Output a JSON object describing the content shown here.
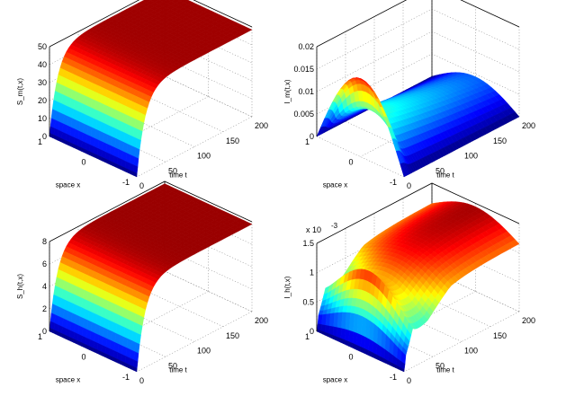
{
  "chart_data": [
    {
      "type": "surface",
      "zlabel": "S_m(t,x)",
      "xlabel": "space x",
      "ylabel": "time t",
      "x_ticks": [
        "-1",
        "0",
        "1"
      ],
      "t_ticks": [
        "0",
        "50",
        "100",
        "150",
        "200"
      ],
      "z_ticks": [
        "0",
        "10",
        "20",
        "30",
        "40",
        "50"
      ],
      "zlim": [
        0,
        50
      ],
      "tlim": [
        0,
        200
      ],
      "xlim": [
        -1,
        1
      ],
      "model": {
        "kind": "saturating",
        "plateau": 48.5,
        "rate": 0.07
      },
      "colormap": "jet"
    },
    {
      "type": "surface",
      "zlabel": "I_m(t,x)",
      "xlabel": "space x",
      "ylabel": "time t",
      "x_ticks": [
        "-1",
        "0",
        "1"
      ],
      "t_ticks": [
        "0",
        "50",
        "100",
        "150",
        "200"
      ],
      "z_ticks": [
        "0",
        "0.005",
        "0.01",
        "0.015",
        "0.02"
      ],
      "zlim": [
        0,
        0.02
      ],
      "tlim": [
        0,
        200
      ],
      "xlim": [
        -1,
        1
      ],
      "model": {
        "kind": "drop",
        "initial_peak": 0.0175,
        "final_peak": 0.0095,
        "switch_t": 10
      },
      "colormap": "jet"
    },
    {
      "type": "surface",
      "zlabel": "S_h(t,x)",
      "xlabel": "space x",
      "ylabel": "time t",
      "x_ticks": [
        "-1",
        "0",
        "1"
      ],
      "t_ticks": [
        "0",
        "50",
        "100",
        "150",
        "200"
      ],
      "z_ticks": [
        "0",
        "2",
        "4",
        "6",
        "8"
      ],
      "zlim": [
        0,
        8
      ],
      "tlim": [
        0,
        200
      ],
      "xlim": [
        -1,
        1
      ],
      "model": {
        "kind": "saturating",
        "plateau": 7.8,
        "rate": 0.07
      },
      "colormap": "jet"
    },
    {
      "type": "surface",
      "zlabel": "I_h(t,x)",
      "xlabel": "space x",
      "ylabel": "time t",
      "x_ticks": [
        "-1",
        "0",
        "1"
      ],
      "t_ticks": [
        "0",
        "50",
        "100",
        "150",
        "200"
      ],
      "z_ticks": [
        "0",
        "0.5",
        "1",
        "1.5"
      ],
      "z_multiplier": "x 10",
      "z_exponent": "-3",
      "zlim": [
        0,
        1.5
      ],
      "tlim": [
        0,
        200
      ],
      "xlim": [
        -1,
        1
      ],
      "model": {
        "kind": "bump",
        "initial_peak": 1.3,
        "dip": 1.05,
        "plateau": 1.45,
        "ridge_t": 15
      },
      "colormap": "jet"
    }
  ]
}
